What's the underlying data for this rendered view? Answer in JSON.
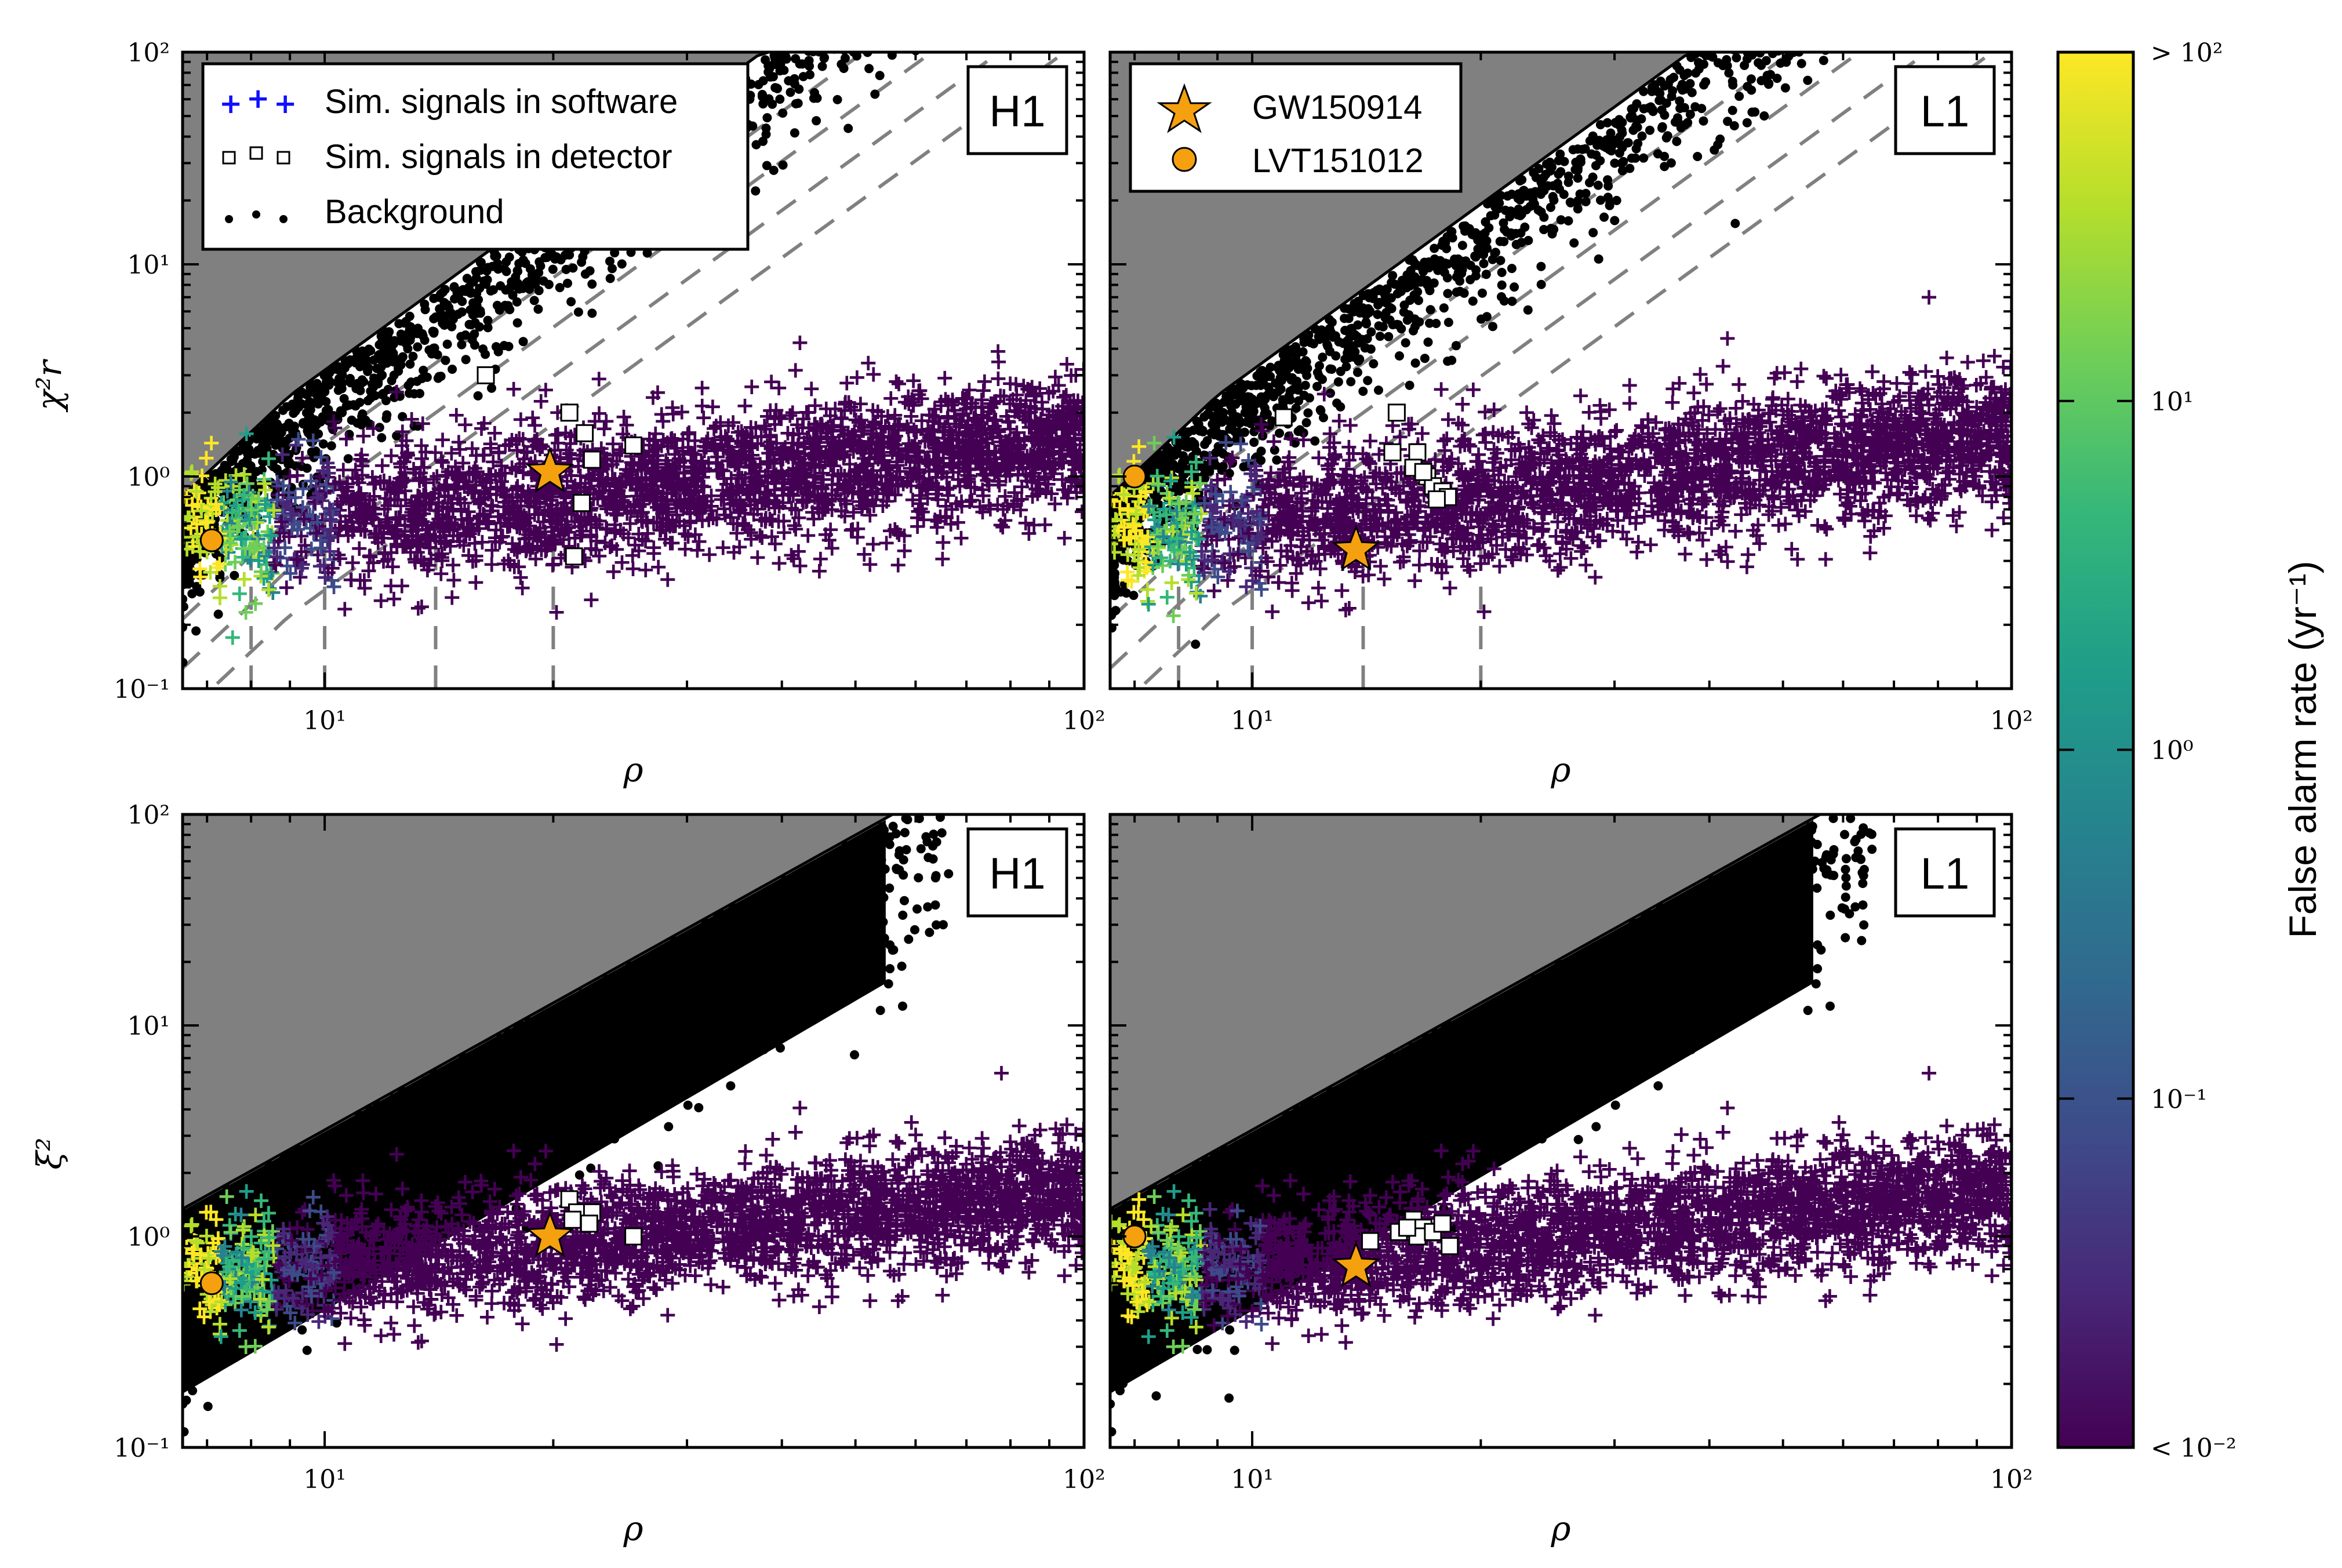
{
  "colors": {
    "forbidden_region": "#808080",
    "background_points": "#000000",
    "signal_star": "#f5a00f",
    "signal_circle": "#f5a00f",
    "sw_injection_legend": "#1010ff",
    "dashed_contours": "#808080",
    "colormap": [
      "#440154",
      "#482777",
      "#3e4a89",
      "#31688e",
      "#26828e",
      "#1f9e89",
      "#35b779",
      "#6ece58",
      "#b5de2b",
      "#fde725"
    ]
  },
  "legend_left": {
    "sw": "Sim. signals in software",
    "hw": "Sim. signals in detector",
    "bg": "Background"
  },
  "legend_right": {
    "gw": "GW150914",
    "lvt": "LVT151012"
  },
  "colorbar": {
    "label": "False alarm rate (yr⁻¹)",
    "ticks": [
      {
        "text": "> 10²",
        "value": 100
      },
      {
        "text": "10¹",
        "value": 10
      },
      {
        "text": "10⁰",
        "value": 1
      },
      {
        "text": "10⁻¹",
        "value": 0.1
      },
      {
        "text": "< 10⁻²",
        "value": 0.01
      }
    ]
  },
  "axes_text": {
    "xlabel": "ρ",
    "ylabel_top": "χ²r",
    "ylabel_bottom": "ξ²",
    "xtick_10": "10¹",
    "xtick_100": "10²",
    "ytick_01": "10⁻¹",
    "ytick_1": "10⁰",
    "ytick_10": "10¹",
    "ytick_100": "10²"
  },
  "chart_data": [
    {
      "type": "scatter",
      "detector": "H1",
      "xlabel": "ρ",
      "ylabel": "χ²r",
      "xscale": "log",
      "yscale": "log",
      "xlim": [
        6.5,
        100
      ],
      "ylim": [
        0.1,
        100
      ],
      "legend_placement": "top-left",
      "series": [
        {
          "name": "Sim. signals in detector",
          "x": [
            16.3,
            21.0,
            22.0,
            22.5,
            21.8,
            25.5,
            21.3
          ],
          "y": [
            3.0,
            2.0,
            1.6,
            1.2,
            0.75,
            1.4,
            0.42
          ]
        },
        {
          "name": "GW150914",
          "x": [
            19.8
          ],
          "y": [
            1.05
          ]
        },
        {
          "name": "LVT151012",
          "x": [
            7.1
          ],
          "y": [
            0.5
          ]
        }
      ],
      "vertical_dashed_x": [
        8,
        10,
        14,
        20
      ],
      "band": {
        "center_at_10": 0.62,
        "slope": 0.63,
        "spread": 0.16
      }
    },
    {
      "type": "scatter",
      "detector": "L1",
      "xlabel": "ρ",
      "ylabel": "χ²r",
      "xscale": "log",
      "yscale": "log",
      "xlim": [
        6.5,
        100
      ],
      "ylim": [
        0.1,
        100
      ],
      "legend_placement": "top-left",
      "series": [
        {
          "name": "Sim. signals in detector",
          "x": [
            11.0,
            15.5,
            15.3,
            16.5,
            16.3,
            17.0,
            17.3,
            17.8,
            18.1,
            17.5,
            16.8
          ],
          "y": [
            1.9,
            2.0,
            1.3,
            1.3,
            1.1,
            1.0,
            0.9,
            0.85,
            0.8,
            0.78,
            1.05
          ]
        },
        {
          "name": "GW150914",
          "x": [
            13.7
          ],
          "y": [
            0.45
          ]
        },
        {
          "name": "LVT151012",
          "x": [
            7.0
          ],
          "y": [
            1.0
          ]
        }
      ],
      "vertical_dashed_x": [
        8,
        10,
        14,
        20
      ],
      "band": {
        "center_at_10": 0.6,
        "slope": 0.72,
        "spread": 0.16
      }
    },
    {
      "type": "scatter",
      "detector": "H1",
      "xlabel": "ρ",
      "ylabel": "ξ²",
      "xscale": "log",
      "yscale": "log",
      "xlim": [
        6.5,
        100
      ],
      "ylim": [
        0.1,
        100
      ],
      "series": [
        {
          "name": "Sim. signals in detector",
          "x": [
            21.0,
            21.5,
            22.5,
            21.2,
            22.3,
            25.5
          ],
          "y": [
            1.5,
            1.3,
            1.3,
            1.2,
            1.15,
            1.0
          ]
        },
        {
          "name": "GW150914",
          "x": [
            19.8
          ],
          "y": [
            1.0
          ]
        },
        {
          "name": "LVT151012",
          "x": [
            7.1
          ],
          "y": [
            0.6
          ]
        }
      ],
      "band": {
        "center_at_10": 0.72,
        "slope": 0.6,
        "spread": 0.14
      }
    },
    {
      "type": "scatter",
      "detector": "L1",
      "xlabel": "ρ",
      "ylabel": "ξ²",
      "xscale": "log",
      "yscale": "log",
      "xlim": [
        6.5,
        100
      ],
      "ylim": [
        0.1,
        100
      ],
      "series": [
        {
          "name": "Sim. signals in detector",
          "x": [
            14.3,
            15.6,
            16.3,
            16.8,
            16.5,
            17.3,
            17.8,
            18.2,
            16.0
          ],
          "y": [
            0.95,
            1.05,
            1.2,
            1.1,
            1.0,
            1.05,
            1.15,
            0.9,
            1.1
          ]
        },
        {
          "name": "GW150914",
          "x": [
            13.7
          ],
          "y": [
            0.72
          ]
        },
        {
          "name": "LVT151012",
          "x": [
            7.0
          ],
          "y": [
            1.0
          ]
        }
      ],
      "band": {
        "center_at_10": 0.72,
        "slope": 0.6,
        "spread": 0.14
      }
    }
  ]
}
